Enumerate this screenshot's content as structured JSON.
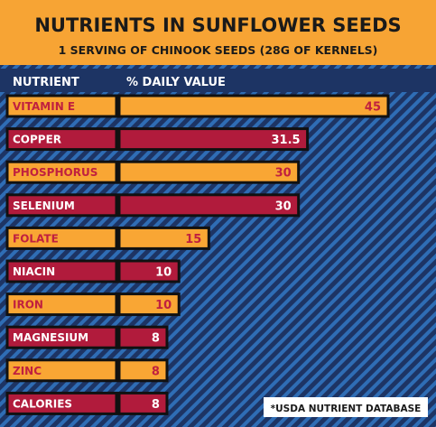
{
  "chart_data": {
    "type": "bar",
    "title": "NUTRIENTS IN SUNFLOWER SEEDS",
    "subtitle": "1 SERVING OF CHINOOK SEEDS (28G OF KERNELS)",
    "col_header_nutrient": "NUTRIENT",
    "col_header_value": "% DAILY VALUE",
    "categories": [
      "VITAMIN E",
      "COPPER",
      "PHOSPHORUS",
      "SELENIUM",
      "FOLATE",
      "NIACIN",
      "IRON",
      "MAGNESIUM",
      "ZINC",
      "CALORIES"
    ],
    "values": [
      45,
      31.5,
      30,
      30,
      15,
      10,
      10,
      8,
      8,
      8
    ],
    "value_labels": [
      "45",
      "31.5",
      "30",
      "30",
      "15",
      "10",
      "10",
      "8",
      "8",
      "8"
    ],
    "source": "*USDA NUTRIENT DATABASE",
    "xlim": [
      0,
      45
    ],
    "colors": {
      "header_bg": "#f7a434",
      "navy": "#1d3464",
      "stripe_blue": "#2f6db5",
      "orange": "#f9a634",
      "crimson": "#b11b3c",
      "text_dark": "#1a1a1a",
      "text_white": "#ffffff",
      "label_on_orange": "#c0203f",
      "white": "#ffffff"
    }
  }
}
